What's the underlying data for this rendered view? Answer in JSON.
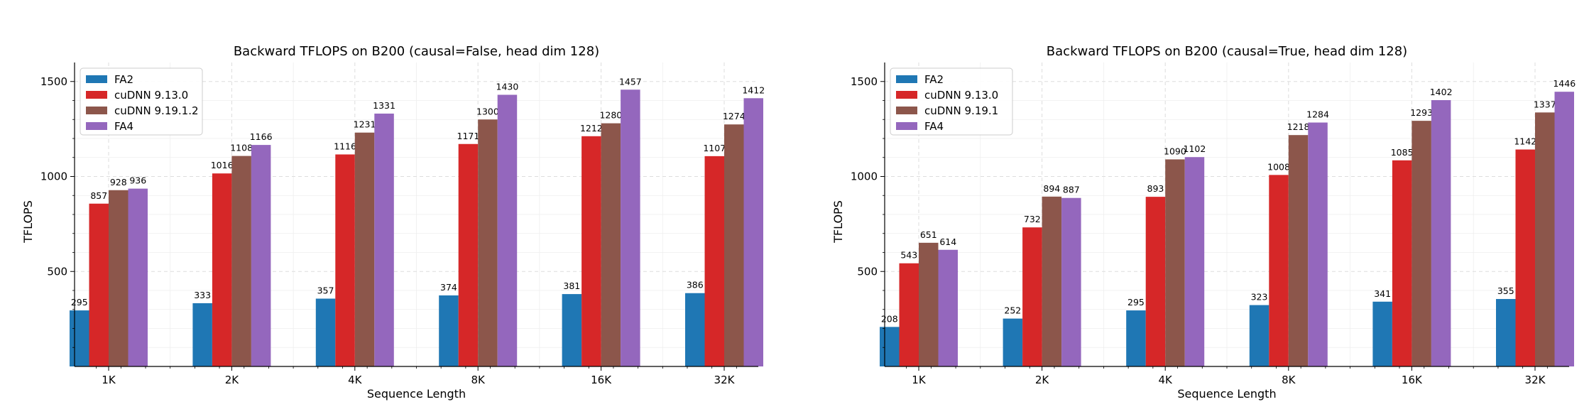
{
  "chart_data": [
    {
      "type": "bar",
      "title": "Backward TFLOPS on B200 (causal=False, head dim 128)",
      "xlabel": "Sequence Length",
      "ylabel": "TFLOPS",
      "ylim": [
        0,
        1600
      ],
      "yticks": [
        500,
        1000,
        1500
      ],
      "grid": true,
      "legend_position": "top-left",
      "categories": [
        "1K",
        "2K",
        "4K",
        "8K",
        "16K",
        "32K"
      ],
      "series": [
        {
          "name": "FA2",
          "color": "#1f77b4",
          "values": [
            295,
            333,
            357,
            374,
            381,
            386
          ]
        },
        {
          "name": "cuDNN 9.13.0",
          "color": "#d62728",
          "values": [
            857,
            1016,
            1116,
            1171,
            1212,
            1107
          ]
        },
        {
          "name": "cuDNN 9.19.1.2",
          "color": "#8c564b",
          "values": [
            928,
            1108,
            1231,
            1300,
            1280,
            1274
          ]
        },
        {
          "name": "FA4",
          "color": "#9467bd",
          "values": [
            936,
            1166,
            1331,
            1430,
            1457,
            1412
          ]
        }
      ]
    },
    {
      "type": "bar",
      "title": "Backward TFLOPS on B200 (causal=True, head dim 128)",
      "xlabel": "Sequence Length",
      "ylabel": "TFLOPS",
      "ylim": [
        0,
        1600
      ],
      "yticks": [
        500,
        1000,
        1500
      ],
      "grid": true,
      "legend_position": "top-left",
      "categories": [
        "1K",
        "2K",
        "4K",
        "8K",
        "16K",
        "32K"
      ],
      "series": [
        {
          "name": "FA2",
          "color": "#1f77b4",
          "values": [
            208,
            252,
            295,
            323,
            341,
            355
          ]
        },
        {
          "name": "cuDNN 9.13.0",
          "color": "#d62728",
          "values": [
            543,
            732,
            893,
            1008,
            1085,
            1142
          ]
        },
        {
          "name": "cuDNN 9.19.1",
          "color": "#8c564b",
          "values": [
            651,
            894,
            1090,
            1218,
            1293,
            1337
          ]
        },
        {
          "name": "FA4",
          "color": "#9467bd",
          "values": [
            614,
            887,
            1102,
            1284,
            1402,
            1446
          ]
        }
      ]
    }
  ]
}
